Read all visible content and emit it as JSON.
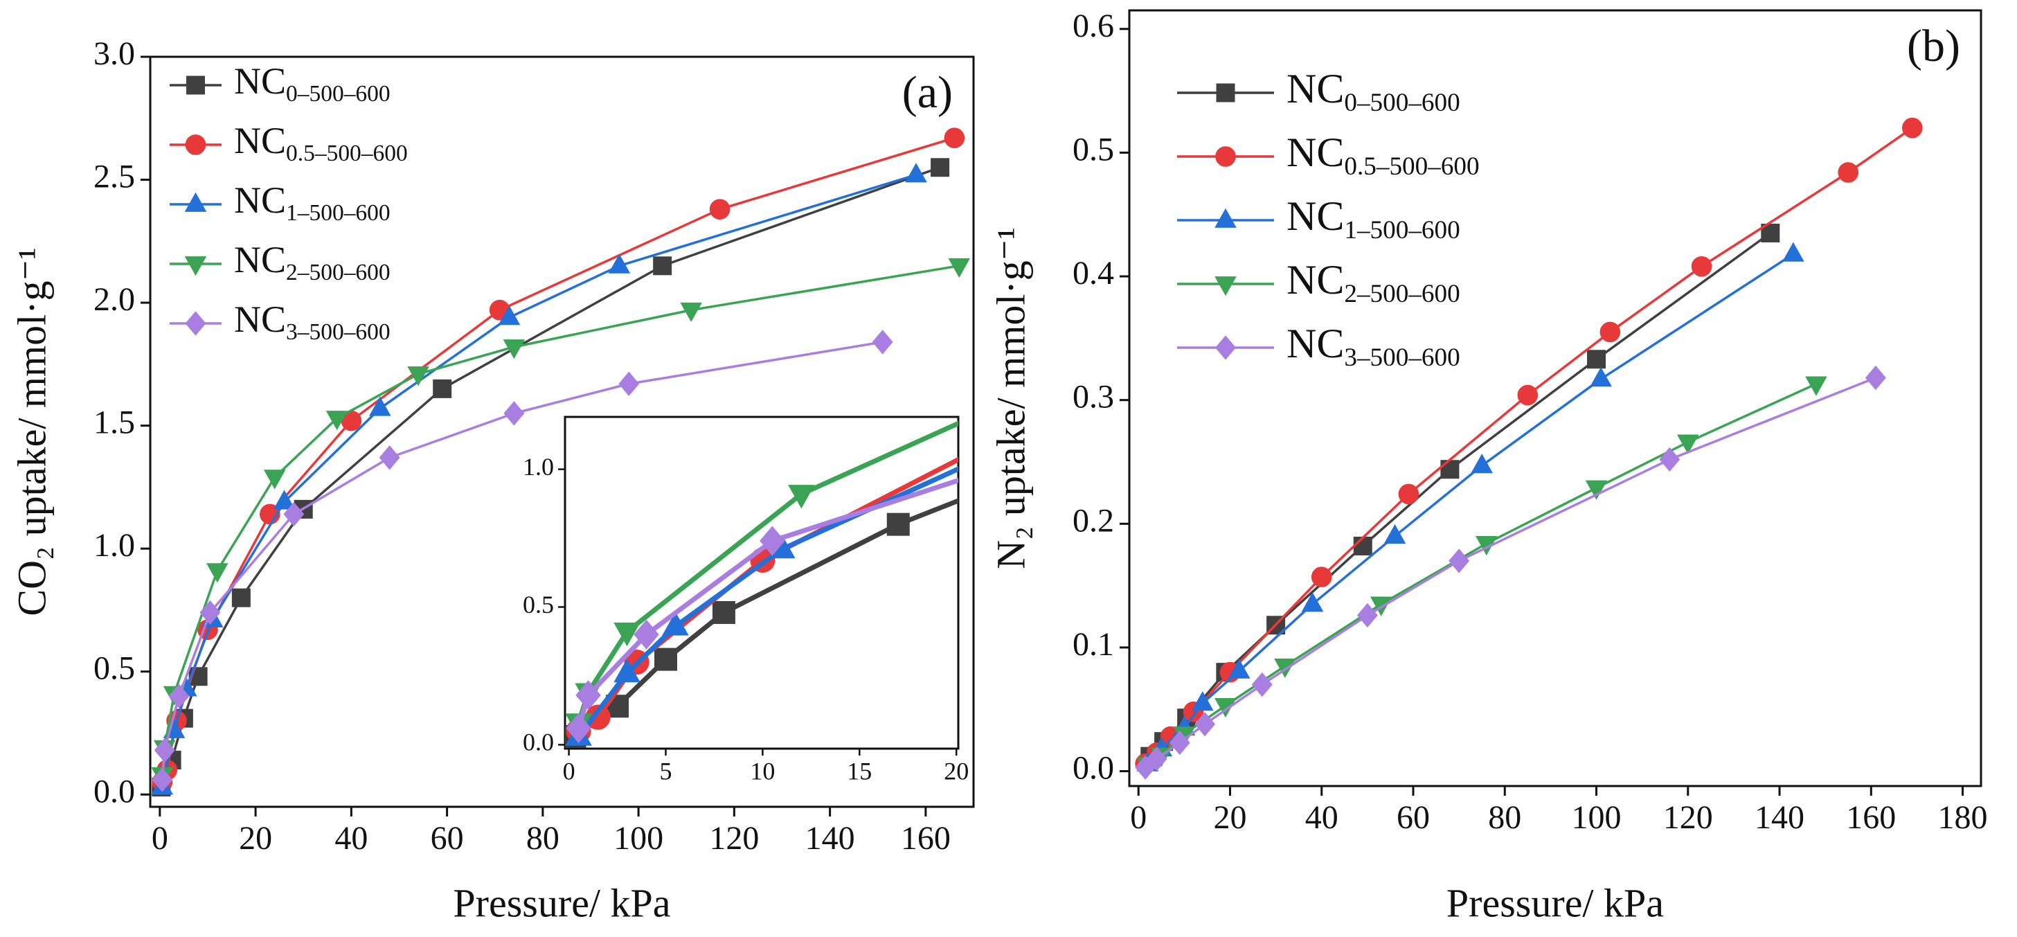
{
  "chart_data": [
    {
      "type": "line",
      "annotation": "(a)",
      "xlabel": "Pressure/ kPa",
      "ylabel": "CO₂ uptake/ mmol·g⁻¹",
      "xlim": [
        -2,
        170
      ],
      "ylim": [
        -0.05,
        3.0
      ],
      "xticks": [
        0,
        20,
        40,
        60,
        80,
        100,
        120,
        140,
        160
      ],
      "yticks": [
        {
          "value": 0,
          "label": "0.0"
        },
        0.5,
        {
          "value": 1,
          "label": "1.0"
        },
        1.5,
        {
          "value": 2,
          "label": "2.0"
        },
        2.5,
        {
          "value": 3,
          "label": "3.0"
        }
      ],
      "legend": "upper left",
      "series": [
        {
          "name": "NC0–500–600",
          "color": "#404040",
          "marker": "square",
          "x": [
            0.3,
            2.5,
            5,
            8,
            17,
            30,
            59,
            105,
            163
          ],
          "values": [
            0.03,
            0.14,
            0.31,
            0.48,
            0.8,
            1.16,
            1.65,
            2.15,
            2.55
          ]
        },
        {
          "name": "NC0.5–500–600",
          "color": "#e8393a",
          "marker": "circle",
          "x": [
            0.5,
            1.5,
            3.5,
            10,
            23,
            40,
            71,
            117,
            166
          ],
          "values": [
            0.05,
            0.1,
            0.3,
            0.67,
            1.14,
            1.52,
            1.97,
            2.38,
            2.67
          ]
        },
        {
          "name": "NC1–500–600",
          "color": "#2370d8",
          "marker": "triangle-up",
          "x": [
            0.5,
            3,
            5.5,
            11,
            26,
            46,
            73,
            96,
            158
          ],
          "values": [
            0.03,
            0.26,
            0.43,
            0.71,
            1.19,
            1.57,
            1.94,
            2.15,
            2.52
          ]
        },
        {
          "name": "NC2–500–600",
          "color": "#3aa454",
          "marker": "triangle-down",
          "x": [
            0.5,
            1,
            3,
            12,
            24,
            37,
            54,
            74,
            111,
            167
          ],
          "values": [
            0.08,
            0.19,
            0.41,
            0.91,
            1.29,
            1.53,
            1.71,
            1.82,
            1.97,
            2.15
          ]
        },
        {
          "name": "NC3–500–600",
          "color": "#a87ee0",
          "marker": "diamond",
          "x": [
            0.5,
            1,
            4,
            10.5,
            28,
            48,
            74,
            98,
            151
          ],
          "values": [
            0.06,
            0.18,
            0.4,
            0.74,
            1.14,
            1.37,
            1.55,
            1.67,
            1.84
          ]
        }
      ],
      "inset": {
        "xlim": [
          -0.2,
          20.1
        ],
        "ylim": [
          -0.014,
          1.19
        ],
        "xticks": [
          0,
          5,
          10,
          15,
          20
        ],
        "yticks": [
          {
            "value": 0,
            "label": "0.0"
          },
          0.5,
          {
            "value": 1,
            "label": "1.0"
          }
        ]
      }
    },
    {
      "type": "line",
      "annotation": "(b)",
      "xlabel": "Pressure/ kPa",
      "ylabel": "N₂ uptake/ mmol·g⁻¹",
      "xlim": [
        -2,
        184
      ],
      "ylim": [
        -0.012,
        0.615
      ],
      "xticks": [
        0,
        20,
        40,
        60,
        80,
        100,
        120,
        140,
        160,
        180
      ],
      "yticks": [
        {
          "value": 0,
          "label": "0.0"
        },
        0.1,
        0.2,
        0.3,
        0.4,
        0.5,
        0.6
      ],
      "legend": "upper left",
      "series": [
        {
          "name": "NC0–500–600",
          "color": "#404040",
          "marker": "square",
          "x": [
            2.5,
            5.5,
            10.5,
            19,
            30,
            49,
            68,
            100,
            138
          ],
          "values": [
            0.012,
            0.024,
            0.043,
            0.08,
            0.118,
            0.182,
            0.244,
            0.333,
            0.435
          ]
        },
        {
          "name": "NC0.5–500–600",
          "color": "#e8393a",
          "marker": "circle",
          "x": [
            1.5,
            4,
            7,
            12,
            20,
            40,
            59,
            85,
            103,
            123,
            155,
            169
          ],
          "values": [
            0.006,
            0.015,
            0.028,
            0.048,
            0.08,
            0.157,
            0.224,
            0.304,
            0.355,
            0.408,
            0.484,
            0.52
          ]
        },
        {
          "name": "NC1–500–600",
          "color": "#2370d8",
          "marker": "triangle-up",
          "x": [
            2,
            5,
            10,
            14,
            22,
            38,
            56,
            75,
            101,
            143
          ],
          "values": [
            0.006,
            0.018,
            0.035,
            0.055,
            0.081,
            0.135,
            0.19,
            0.247,
            0.317,
            0.418
          ]
        },
        {
          "name": "NC2–500–600",
          "color": "#3aa454",
          "marker": "triangle-down",
          "x": [
            2,
            5,
            10,
            19,
            32,
            53,
            76,
            100,
            120,
            148
          ],
          "values": [
            0.005,
            0.013,
            0.03,
            0.053,
            0.085,
            0.135,
            0.184,
            0.229,
            0.266,
            0.313
          ]
        },
        {
          "name": "NC3–500–600",
          "color": "#a87ee0",
          "marker": "diamond",
          "x": [
            1.5,
            4,
            9,
            14.5,
            27,
            50,
            70,
            116,
            161
          ],
          "values": [
            0.003,
            0.01,
            0.023,
            0.038,
            0.07,
            0.126,
            0.17,
            0.252,
            0.318
          ]
        }
      ]
    }
  ]
}
